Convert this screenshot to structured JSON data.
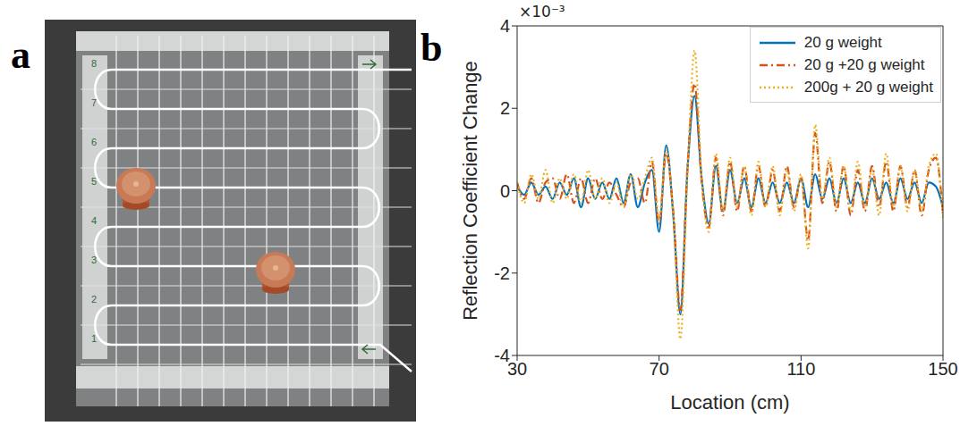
{
  "panel_labels": [
    "a",
    "b"
  ],
  "photo": {
    "row_labels": [
      "8",
      "7",
      "6",
      "5",
      "4",
      "3",
      "2",
      "1"
    ]
  },
  "chart_data": {
    "type": "line",
    "x_label": "Location (cm)",
    "y_label": "Reflection Coefficient Change",
    "y_multiplier": "×10⁻³",
    "x": [
      30,
      32,
      34,
      36,
      38,
      40,
      42,
      44,
      46,
      48,
      50,
      52,
      54,
      56,
      58,
      60,
      62,
      64,
      66,
      68,
      70,
      72,
      74,
      76,
      78,
      80,
      82,
      84,
      86,
      88,
      90,
      92,
      94,
      96,
      98,
      100,
      102,
      104,
      106,
      108,
      110,
      112,
      114,
      116,
      118,
      120,
      122,
      124,
      126,
      128,
      130,
      132,
      134,
      136,
      138,
      140,
      142,
      144,
      146,
      148,
      150
    ],
    "xlim": [
      30,
      150
    ],
    "xticks": [
      30,
      70,
      110,
      150
    ],
    "ylim": [
      -4,
      4
    ],
    "yticks": [
      -4,
      -2,
      0,
      2,
      4
    ],
    "grid": false,
    "legend": "upper right",
    "series": [
      {
        "name": "20 g weight",
        "color": "#0072bd",
        "line_style": "solid",
        "values": [
          0.1,
          -0.1,
          0.2,
          -0.1,
          0.1,
          -0.2,
          0.2,
          -0.1,
          0.3,
          -0.4,
          0.3,
          -0.2,
          0.2,
          -0.2,
          0.3,
          -0.3,
          0.4,
          -0.4,
          0.2,
          0.5,
          -1.0,
          1.1,
          -0.6,
          -3.0,
          0.5,
          2.3,
          0.3,
          -0.8,
          0.6,
          -0.5,
          0.5,
          -0.3,
          0.3,
          -0.4,
          0.3,
          -0.3,
          0.2,
          -0.3,
          0.2,
          -0.3,
          0.3,
          -0.4,
          0.4,
          -0.2,
          0.3,
          -0.3,
          0.3,
          -0.3,
          0.2,
          -0.3,
          0.3,
          -0.2,
          0.2,
          -0.3,
          0.3,
          -0.2,
          0.2,
          -0.3,
          0.2,
          0.1,
          -0.4
        ]
      },
      {
        "name": "20 g +20 g weight",
        "color": "#d95319",
        "line_style": "dashdot",
        "values": [
          0.2,
          -0.2,
          0.3,
          -0.3,
          0.2,
          0.3,
          -0.2,
          0.4,
          -0.3,
          0.3,
          -0.3,
          0.3,
          -0.2,
          0.2,
          -0.1,
          -0.4,
          0.2,
          0.3,
          -0.3,
          0.7,
          -0.8,
          0.9,
          -0.5,
          -2.9,
          0.6,
          2.6,
          0.2,
          -0.9,
          0.8,
          -0.6,
          0.7,
          -0.5,
          0.6,
          -0.5,
          0.6,
          -0.4,
          0.5,
          -0.5,
          0.6,
          -0.4,
          0.3,
          -1.2,
          1.4,
          -0.3,
          0.7,
          -0.5,
          0.6,
          -0.6,
          0.5,
          -0.5,
          0.6,
          -0.4,
          0.7,
          -0.5,
          0.6,
          -0.4,
          0.5,
          -0.6,
          0.5,
          0.8,
          -0.6
        ]
      },
      {
        "name": "200g + 20 g weight",
        "color": "#edb120",
        "line_style": "dotted",
        "values": [
          0.2,
          -0.3,
          0.4,
          -0.2,
          0.5,
          -0.3,
          0.3,
          -0.2,
          0.4,
          -0.3,
          0.5,
          -0.2,
          0.3,
          -0.3,
          0.2,
          -0.4,
          0.4,
          -0.2,
          0.3,
          0.8,
          -0.7,
          1.0,
          -0.6,
          -3.6,
          0.4,
          3.4,
          0.3,
          -1.0,
          0.9,
          -0.5,
          0.8,
          -0.4,
          0.6,
          -0.6,
          0.7,
          -0.4,
          0.6,
          -0.6,
          0.5,
          -0.5,
          0.4,
          -1.4,
          1.6,
          -0.2,
          0.8,
          -0.4,
          0.6,
          -0.5,
          0.7,
          -0.4,
          0.5,
          -0.6,
          0.9,
          -0.4,
          0.6,
          -0.5,
          0.5,
          -0.5,
          0.6,
          0.9,
          -0.7
        ]
      }
    ]
  }
}
